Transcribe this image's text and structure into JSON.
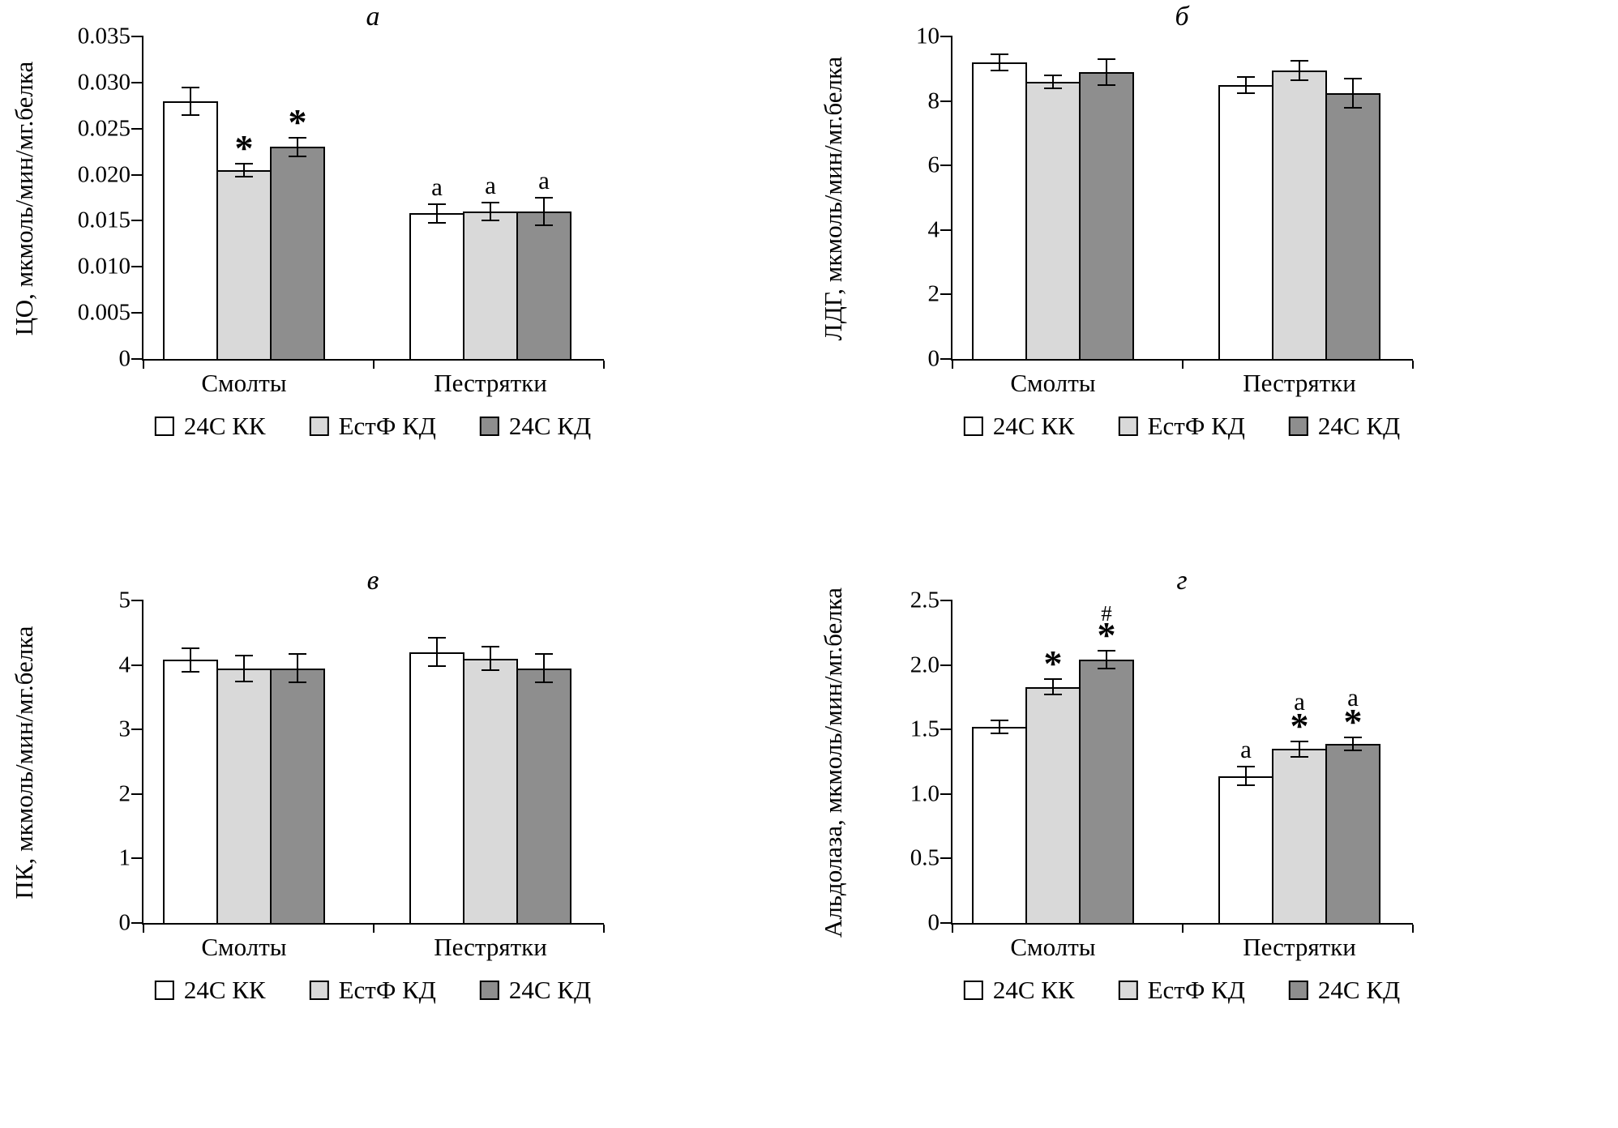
{
  "colors": {
    "background": "#ffffff",
    "axis": "#000000",
    "bar_border": "#000000",
    "series": [
      "#ffffff",
      "#d9d9d9",
      "#8e8e8e"
    ]
  },
  "legend": {
    "items": [
      {
        "label": "24С КК",
        "color": "#ffffff"
      },
      {
        "label": "ЕстФ КД",
        "color": "#d9d9d9"
      },
      {
        "label": "24С КД",
        "color": "#8e8e8e"
      }
    ]
  },
  "chart_data": [
    {
      "id": "a",
      "type": "bar",
      "title": "а",
      "ylabel": "ЦО, мкмоль/мин/мг.белка",
      "xlabel": "",
      "ylim": [
        0,
        0.035
      ],
      "yticks": [
        0,
        0.005,
        0.01,
        0.015,
        0.02,
        0.025,
        0.03,
        0.035
      ],
      "ytick_labels": [
        "0",
        "0.005",
        "0.010",
        "0.015",
        "0.020",
        "0.025",
        "0.030",
        "0.035"
      ],
      "categories": [
        "Смолты",
        "Пестрятки"
      ],
      "grid": false,
      "legend_position": "bottom",
      "series": [
        {
          "name": "24С КК",
          "values": [
            0.028,
            0.0158
          ],
          "errors": [
            0.0015,
            0.001
          ],
          "annotations": [
            [],
            [
              "а"
            ]
          ]
        },
        {
          "name": "ЕстФ КД",
          "values": [
            0.0205,
            0.016
          ],
          "errors": [
            0.0007,
            0.001
          ],
          "annotations": [
            [
              "*"
            ],
            [
              "а"
            ]
          ]
        },
        {
          "name": "24С КД",
          "values": [
            0.023,
            0.016
          ],
          "errors": [
            0.001,
            0.0015
          ],
          "annotations": [
            [
              "*"
            ],
            [
              "а"
            ]
          ]
        }
      ]
    },
    {
      "id": "b",
      "type": "bar",
      "title": "б",
      "ylabel": "ЛДГ, мкмоль/мин/мг.белка",
      "xlabel": "",
      "ylim": [
        0,
        10
      ],
      "yticks": [
        0,
        2,
        4,
        6,
        8,
        10
      ],
      "ytick_labels": [
        "0",
        "2",
        "4",
        "6",
        "8",
        "10"
      ],
      "categories": [
        "Смолты",
        "Пестрятки"
      ],
      "grid": false,
      "legend_position": "bottom",
      "series": [
        {
          "name": "24С КК",
          "values": [
            9.2,
            8.5
          ],
          "errors": [
            0.25,
            0.25
          ],
          "annotations": [
            [],
            []
          ]
        },
        {
          "name": "ЕстФ КД",
          "values": [
            8.6,
            8.95
          ],
          "errors": [
            0.2,
            0.3
          ],
          "annotations": [
            [],
            []
          ]
        },
        {
          "name": "24С КД",
          "values": [
            8.9,
            8.25
          ],
          "errors": [
            0.4,
            0.45
          ],
          "annotations": [
            [],
            []
          ]
        }
      ]
    },
    {
      "id": "v",
      "type": "bar",
      "title": "в",
      "ylabel": "ПК, мкмоль/мин/мг.белка",
      "xlabel": "",
      "ylim": [
        0,
        5
      ],
      "yticks": [
        0,
        1,
        2,
        3,
        4,
        5
      ],
      "ytick_labels": [
        "0",
        "1",
        "2",
        "3",
        "4",
        "5"
      ],
      "categories": [
        "Смолты",
        "Пестрятки"
      ],
      "grid": false,
      "legend_position": "bottom",
      "series": [
        {
          "name": "24С КК",
          "values": [
            4.08,
            4.2
          ],
          "errors": [
            0.18,
            0.22
          ],
          "annotations": [
            [],
            []
          ]
        },
        {
          "name": "ЕстФ КД",
          "values": [
            3.95,
            4.1
          ],
          "errors": [
            0.2,
            0.18
          ],
          "annotations": [
            [],
            []
          ]
        },
        {
          "name": "24С КД",
          "values": [
            3.95,
            3.95
          ],
          "errors": [
            0.22,
            0.22
          ],
          "annotations": [
            [],
            []
          ]
        }
      ]
    },
    {
      "id": "g",
      "type": "bar",
      "title": "г",
      "ylabel": "Альдолаза, мкмоль/мин/мг.белка",
      "xlabel": "",
      "ylim": [
        0,
        2.5
      ],
      "yticks": [
        0,
        0.5,
        1.0,
        1.5,
        2.0,
        2.5
      ],
      "ytick_labels": [
        "0",
        "0.5",
        "1.0",
        "1.5",
        "2.0",
        "2.5"
      ],
      "categories": [
        "Смолты",
        "Пестрятки"
      ],
      "grid": false,
      "legend_position": "bottom",
      "series": [
        {
          "name": "24С КК",
          "values": [
            1.52,
            1.14
          ],
          "errors": [
            0.05,
            0.07
          ],
          "annotations": [
            [],
            [
              "а"
            ]
          ]
        },
        {
          "name": "ЕстФ КД",
          "values": [
            1.83,
            1.35
          ],
          "errors": [
            0.06,
            0.06
          ],
          "annotations": [
            [
              "*"
            ],
            [
              "а",
              "*"
            ]
          ]
        },
        {
          "name": "24С КД",
          "values": [
            2.04,
            1.39
          ],
          "errors": [
            0.07,
            0.05
          ],
          "annotations": [
            [
              "#",
              "*"
            ],
            [
              "а",
              "*"
            ]
          ]
        }
      ]
    }
  ]
}
